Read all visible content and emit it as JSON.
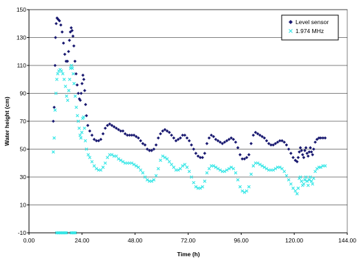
{
  "chart_data": {
    "type": "scatter",
    "title": "",
    "xlabel": "Time (h)",
    "ylabel": "Water height (cm)",
    "xlim": [
      0,
      144
    ],
    "ylim": [
      -10,
      150
    ],
    "x_ticks": [
      0,
      24,
      48,
      72,
      96,
      120,
      144
    ],
    "x_tick_labels": [
      "0.00",
      "24.00",
      "48.00",
      "72.00",
      "96.00",
      "120.00",
      "144.00"
    ],
    "y_ticks": [
      -10,
      10,
      30,
      50,
      70,
      90,
      110,
      130,
      150
    ],
    "y_tick_labels": [
      "-10",
      "10",
      "30",
      "50",
      "70",
      "90",
      "110",
      "130",
      "150"
    ],
    "grid": "horizontal",
    "legend_position": "top-right",
    "colors": {
      "level_sensor": "#191970",
      "mhz": "#33e6e6",
      "grid": "#000000"
    },
    "series": [
      {
        "name": "Level sensor",
        "marker": "diamond",
        "color": "#191970",
        "points": [
          [
            11.0,
            70
          ],
          [
            11.4,
            80
          ],
          [
            11.8,
            110
          ],
          [
            12.0,
            130
          ],
          [
            12.3,
            140
          ],
          [
            12.7,
            144
          ],
          [
            13.2,
            143
          ],
          [
            13.8,
            142
          ],
          [
            14.4,
            139
          ],
          [
            15.0,
            134
          ],
          [
            15.6,
            126
          ],
          [
            16.2,
            118
          ],
          [
            16.8,
            113
          ],
          [
            17.4,
            113
          ],
          [
            17.9,
            120
          ],
          [
            18.3,
            128
          ],
          [
            18.7,
            134
          ],
          [
            19.1,
            137
          ],
          [
            19.5,
            135
          ],
          [
            19.9,
            131
          ],
          [
            20.3,
            124
          ],
          [
            20.8,
            113
          ],
          [
            21.3,
            104
          ],
          [
            21.8,
            96
          ],
          [
            22.3,
            90
          ],
          [
            22.8,
            86
          ],
          [
            23.2,
            85
          ],
          [
            23.6,
            90
          ],
          [
            24.0,
            97
          ],
          [
            24.4,
            103
          ],
          [
            24.8,
            100
          ],
          [
            25.2,
            92
          ],
          [
            25.6,
            82
          ],
          [
            26.0,
            74
          ],
          [
            26.6,
            67
          ],
          [
            27.5,
            63
          ],
          [
            28.5,
            60
          ],
          [
            29.5,
            57
          ],
          [
            30.5,
            56
          ],
          [
            31.5,
            56
          ],
          [
            32.5,
            57
          ],
          [
            33.5,
            61
          ],
          [
            34.5,
            65
          ],
          [
            35.5,
            67
          ],
          [
            36.5,
            68
          ],
          [
            37.5,
            67
          ],
          [
            38.5,
            66
          ],
          [
            39.5,
            65
          ],
          [
            40.5,
            64
          ],
          [
            41.5,
            63
          ],
          [
            42.5,
            63
          ],
          [
            43.5,
            61
          ],
          [
            44.5,
            60
          ],
          [
            45.5,
            60
          ],
          [
            46.5,
            60
          ],
          [
            47.5,
            60
          ],
          [
            48.5,
            59
          ],
          [
            49.5,
            58
          ],
          [
            50.5,
            56
          ],
          [
            51.5,
            54
          ],
          [
            52.5,
            53
          ],
          [
            53.5,
            50
          ],
          [
            54.5,
            49
          ],
          [
            55.5,
            49
          ],
          [
            56.5,
            50
          ],
          [
            57.5,
            53
          ],
          [
            58.5,
            58
          ],
          [
            59.5,
            61
          ],
          [
            60.5,
            63
          ],
          [
            61.5,
            64
          ],
          [
            62.5,
            63
          ],
          [
            63.5,
            62
          ],
          [
            64.5,
            60
          ],
          [
            65.5,
            58
          ],
          [
            66.5,
            56
          ],
          [
            67.5,
            57
          ],
          [
            68.5,
            58
          ],
          [
            69.5,
            60
          ],
          [
            70.5,
            60
          ],
          [
            71.5,
            58
          ],
          [
            72.5,
            56
          ],
          [
            73.5,
            53
          ],
          [
            74.5,
            50
          ],
          [
            75.5,
            47
          ],
          [
            76.5,
            45
          ],
          [
            77.5,
            44
          ],
          [
            78.5,
            44
          ],
          [
            79.5,
            47
          ],
          [
            80.5,
            54
          ],
          [
            81.5,
            58
          ],
          [
            82.5,
            60
          ],
          [
            83.5,
            59
          ],
          [
            84.5,
            57
          ],
          [
            85.5,
            56
          ],
          [
            86.5,
            55
          ],
          [
            87.5,
            54
          ],
          [
            88.5,
            55
          ],
          [
            89.5,
            56
          ],
          [
            90.5,
            57
          ],
          [
            91.5,
            58
          ],
          [
            92.5,
            57
          ],
          [
            93.5,
            55
          ],
          [
            94.5,
            51
          ],
          [
            95.5,
            46
          ],
          [
            96.5,
            43
          ],
          [
            97.5,
            43
          ],
          [
            98.5,
            44
          ],
          [
            99.5,
            46
          ],
          [
            100.5,
            54
          ],
          [
            101.5,
            60
          ],
          [
            102.5,
            62
          ],
          [
            103.5,
            61
          ],
          [
            104.5,
            60
          ],
          [
            105.5,
            59
          ],
          [
            106.5,
            58
          ],
          [
            107.5,
            56
          ],
          [
            108.5,
            54
          ],
          [
            109.5,
            53
          ],
          [
            110.5,
            53
          ],
          [
            111.5,
            54
          ],
          [
            112.5,
            55
          ],
          [
            113.5,
            56
          ],
          [
            114.5,
            56
          ],
          [
            115.5,
            55
          ],
          [
            116.5,
            53
          ],
          [
            117.5,
            50
          ],
          [
            118.5,
            47
          ],
          [
            119.5,
            44
          ],
          [
            120.5,
            42
          ],
          [
            121.3,
            41
          ],
          [
            121.8,
            44
          ],
          [
            122.3,
            48
          ],
          [
            122.8,
            51
          ],
          [
            123.3,
            49
          ],
          [
            123.8,
            46
          ],
          [
            124.3,
            44
          ],
          [
            124.8,
            49
          ],
          [
            125.3,
            51
          ],
          [
            125.8,
            47
          ],
          [
            126.3,
            45
          ],
          [
            126.8,
            48
          ],
          [
            127.3,
            51
          ],
          [
            127.8,
            48
          ],
          [
            128.3,
            46
          ],
          [
            128.8,
            50
          ],
          [
            129.5,
            55
          ],
          [
            130.3,
            57
          ],
          [
            131.2,
            58
          ],
          [
            132.0,
            58
          ],
          [
            133.0,
            58
          ],
          [
            134.0,
            58
          ]
        ]
      },
      {
        "name": "1.974 MHz",
        "marker": "x",
        "color": "#33e6e6",
        "points": [
          [
            11.0,
            48
          ],
          [
            11.4,
            58
          ],
          [
            11.8,
            78
          ],
          [
            12.2,
            90
          ],
          [
            12.6,
            100
          ],
          [
            13.0,
            104
          ],
          [
            13.5,
            106
          ],
          [
            14.1,
            107
          ],
          [
            14.7,
            106
          ],
          [
            15.3,
            104
          ],
          [
            15.9,
            100
          ],
          [
            16.5,
            95
          ],
          [
            17.0,
            88
          ],
          [
            17.5,
            85
          ],
          [
            18.0,
            92
          ],
          [
            18.4,
            100
          ],
          [
            18.8,
            108
          ],
          [
            19.2,
            110
          ],
          [
            19.6,
            108
          ],
          [
            20.0,
            104
          ],
          [
            20.4,
            97
          ],
          [
            20.9,
            88
          ],
          [
            21.4,
            80
          ],
          [
            21.9,
            74
          ],
          [
            22.3,
            70
          ],
          [
            22.7,
            65
          ],
          [
            23.1,
            60
          ],
          [
            23.5,
            58
          ],
          [
            23.9,
            62
          ],
          [
            24.3,
            72
          ],
          [
            24.7,
            73
          ],
          [
            25.1,
            65
          ],
          [
            25.5,
            56
          ],
          [
            26.0,
            50
          ],
          [
            26.8,
            46
          ],
          [
            27.5,
            44
          ],
          [
            28.5,
            41
          ],
          [
            29.5,
            38
          ],
          [
            30.5,
            36
          ],
          [
            31.5,
            35
          ],
          [
            32.5,
            35
          ],
          [
            33.5,
            37
          ],
          [
            34.5,
            40
          ],
          [
            35.5,
            44
          ],
          [
            36.5,
            46
          ],
          [
            37.5,
            46
          ],
          [
            38.5,
            45
          ],
          [
            39.5,
            45
          ],
          [
            40.5,
            43
          ],
          [
            41.5,
            42
          ],
          [
            42.5,
            41
          ],
          [
            43.5,
            40
          ],
          [
            44.5,
            40
          ],
          [
            45.5,
            40
          ],
          [
            46.5,
            40
          ],
          [
            47.5,
            39
          ],
          [
            48.5,
            38
          ],
          [
            49.5,
            37
          ],
          [
            50.5,
            35
          ],
          [
            51.5,
            33
          ],
          [
            52.5,
            30
          ],
          [
            53.5,
            28
          ],
          [
            54.5,
            27
          ],
          [
            55.5,
            27
          ],
          [
            56.5,
            28
          ],
          [
            57.5,
            31
          ],
          [
            58.5,
            36
          ],
          [
            59.5,
            42
          ],
          [
            60.5,
            45
          ],
          [
            61.5,
            44
          ],
          [
            62.5,
            43
          ],
          [
            63.5,
            41
          ],
          [
            64.5,
            39
          ],
          [
            65.5,
            37
          ],
          [
            66.5,
            35
          ],
          [
            67.5,
            35
          ],
          [
            68.5,
            36
          ],
          [
            69.5,
            38
          ],
          [
            70.5,
            39
          ],
          [
            71.5,
            37
          ],
          [
            72.5,
            34
          ],
          [
            73.5,
            30
          ],
          [
            74.5,
            26
          ],
          [
            75.5,
            23
          ],
          [
            76.5,
            22
          ],
          [
            77.5,
            22
          ],
          [
            78.5,
            23
          ],
          [
            79.5,
            27
          ],
          [
            80.5,
            33
          ],
          [
            81.5,
            36
          ],
          [
            82.5,
            38
          ],
          [
            83.5,
            38
          ],
          [
            84.5,
            37
          ],
          [
            85.5,
            36
          ],
          [
            86.5,
            35
          ],
          [
            87.5,
            34
          ],
          [
            88.5,
            34
          ],
          [
            89.5,
            35
          ],
          [
            90.5,
            36
          ],
          [
            91.5,
            37
          ],
          [
            92.5,
            36
          ],
          [
            93.5,
            33
          ],
          [
            94.5,
            28
          ],
          [
            95.5,
            23
          ],
          [
            96.5,
            20
          ],
          [
            97.5,
            19
          ],
          [
            98.5,
            20
          ],
          [
            99.5,
            23
          ],
          [
            100.5,
            32
          ],
          [
            101.5,
            38
          ],
          [
            102.5,
            40
          ],
          [
            103.5,
            40
          ],
          [
            104.5,
            39
          ],
          [
            105.5,
            38
          ],
          [
            106.5,
            37
          ],
          [
            107.5,
            36
          ],
          [
            108.5,
            35
          ],
          [
            109.5,
            35
          ],
          [
            110.5,
            35
          ],
          [
            111.5,
            36
          ],
          [
            112.5,
            37
          ],
          [
            113.5,
            37
          ],
          [
            114.5,
            36
          ],
          [
            115.5,
            34
          ],
          [
            116.5,
            31
          ],
          [
            117.5,
            28
          ],
          [
            118.5,
            25
          ],
          [
            119.5,
            22
          ],
          [
            120.5,
            20
          ],
          [
            121.3,
            18
          ],
          [
            121.8,
            22
          ],
          [
            122.3,
            29
          ],
          [
            122.8,
            30
          ],
          [
            123.3,
            27
          ],
          [
            123.8,
            24
          ],
          [
            124.3,
            25
          ],
          [
            124.8,
            28
          ],
          [
            125.3,
            30
          ],
          [
            125.8,
            27
          ],
          [
            126.3,
            24
          ],
          [
            126.8,
            28
          ],
          [
            127.3,
            30
          ],
          [
            127.8,
            27
          ],
          [
            128.3,
            25
          ],
          [
            128.8,
            29
          ],
          [
            129.5,
            34
          ],
          [
            130.3,
            36
          ],
          [
            131.2,
            37
          ],
          [
            132.0,
            37
          ],
          [
            133.0,
            38
          ],
          [
            134.0,
            38
          ],
          [
            12.5,
            -10
          ],
          [
            13.0,
            -10
          ],
          [
            13.5,
            -10
          ],
          [
            14.0,
            -10
          ],
          [
            14.5,
            -10
          ],
          [
            15.0,
            -10
          ],
          [
            15.5,
            -10
          ],
          [
            16.0,
            -10
          ],
          [
            16.5,
            -10
          ],
          [
            17.0,
            -10
          ],
          [
            19.0,
            -10
          ],
          [
            19.5,
            -10
          ],
          [
            20.0,
            -10
          ],
          [
            20.5,
            -10
          ],
          [
            21.0,
            -10
          ]
        ]
      }
    ]
  }
}
